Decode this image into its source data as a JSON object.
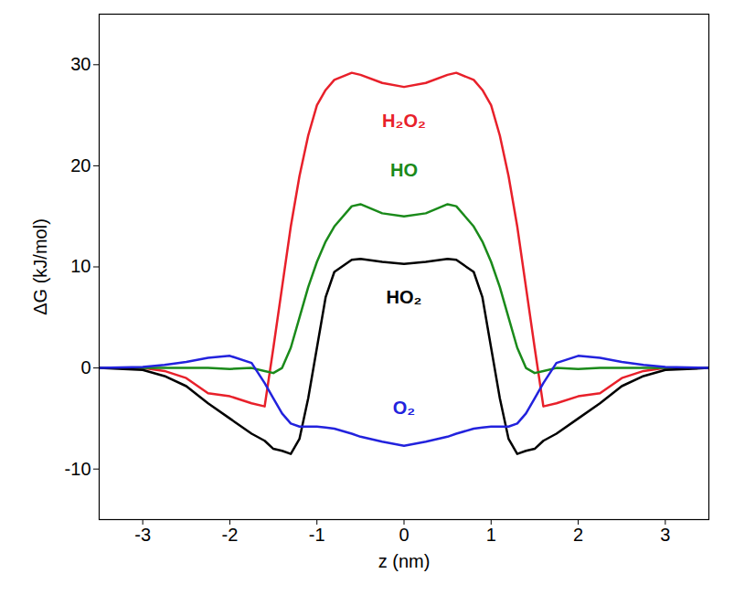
{
  "chart_data": {
    "type": "line",
    "x_label": "z (nm)",
    "y_label": "ΔG (kJ/mol)",
    "x": [
      -3.5,
      -3,
      -2.75,
      -2.5,
      -2.25,
      -2,
      -1.75,
      -1.6,
      -1.5,
      -1.4,
      -1.3,
      -1.2,
      -1.1,
      -1,
      -0.9,
      -0.8,
      -0.6,
      -0.5,
      -0.25,
      0,
      0.25,
      0.5,
      0.6,
      0.8,
      0.9,
      1,
      1.1,
      1.2,
      1.3,
      1.4,
      1.5,
      1.6,
      1.75,
      2,
      2.25,
      2.5,
      2.75,
      3,
      3.5
    ],
    "series": [
      {
        "name": "H₂O₂",
        "color": "#e8202a",
        "values": [
          0,
          0,
          -0.3,
          -1.0,
          -2.5,
          -2.8,
          -3.5,
          -3.8,
          2,
          8,
          14,
          19,
          23,
          26,
          27.5,
          28.5,
          29.2,
          29,
          28.2,
          27.8,
          28.2,
          29,
          29.2,
          28.5,
          27.5,
          26,
          23,
          19,
          14,
          8,
          2,
          -3.8,
          -3.5,
          -2.8,
          -2.5,
          -1.0,
          -0.3,
          0,
          0
        ]
      },
      {
        "name": "HO",
        "color": "#1a8a1a",
        "values": [
          0,
          0,
          0,
          0,
          0,
          -0.1,
          0,
          -0.3,
          -0.5,
          0,
          2,
          5,
          8,
          10.5,
          12.5,
          14,
          16,
          16.2,
          15.3,
          15,
          15.3,
          16.2,
          16,
          14,
          12.5,
          10.5,
          8,
          5,
          2,
          0,
          -0.5,
          -0.3,
          0,
          -0.1,
          0,
          0,
          0,
          0,
          0
        ]
      },
      {
        "name": "HO₂",
        "color": "#000000",
        "values": [
          0,
          -0.2,
          -0.8,
          -1.8,
          -3.5,
          -5,
          -6.5,
          -7.2,
          -8,
          -8.2,
          -8.5,
          -7,
          -3,
          2,
          7,
          9.5,
          10.7,
          10.8,
          10.5,
          10.3,
          10.5,
          10.8,
          10.7,
          9.5,
          7,
          2,
          -3,
          -7,
          -8.5,
          -8.2,
          -8,
          -7.2,
          -6.5,
          -5,
          -3.5,
          -1.8,
          -0.8,
          -0.2,
          0
        ]
      },
      {
        "name": "O₂",
        "color": "#2222dd",
        "values": [
          0,
          0.1,
          0.3,
          0.6,
          1.0,
          1.2,
          0.5,
          -1.5,
          -3,
          -4.5,
          -5.5,
          -5.8,
          -5.8,
          -5.8,
          -5.9,
          -6,
          -6.5,
          -6.8,
          -7.3,
          -7.7,
          -7.3,
          -6.8,
          -6.5,
          -6,
          -5.9,
          -5.8,
          -5.8,
          -5.8,
          -5.5,
          -4.5,
          -3,
          -1.5,
          0.5,
          1.2,
          1.0,
          0.6,
          0.3,
          0.1,
          0
        ]
      }
    ],
    "xlim": [
      -3.5,
      3.5
    ],
    "ylim": [
      -15,
      35
    ],
    "xticks": [
      -3,
      -2,
      -1,
      0,
      1,
      2,
      3
    ],
    "yticks": [
      -10,
      0,
      10,
      20,
      30
    ],
    "grid": false
  }
}
